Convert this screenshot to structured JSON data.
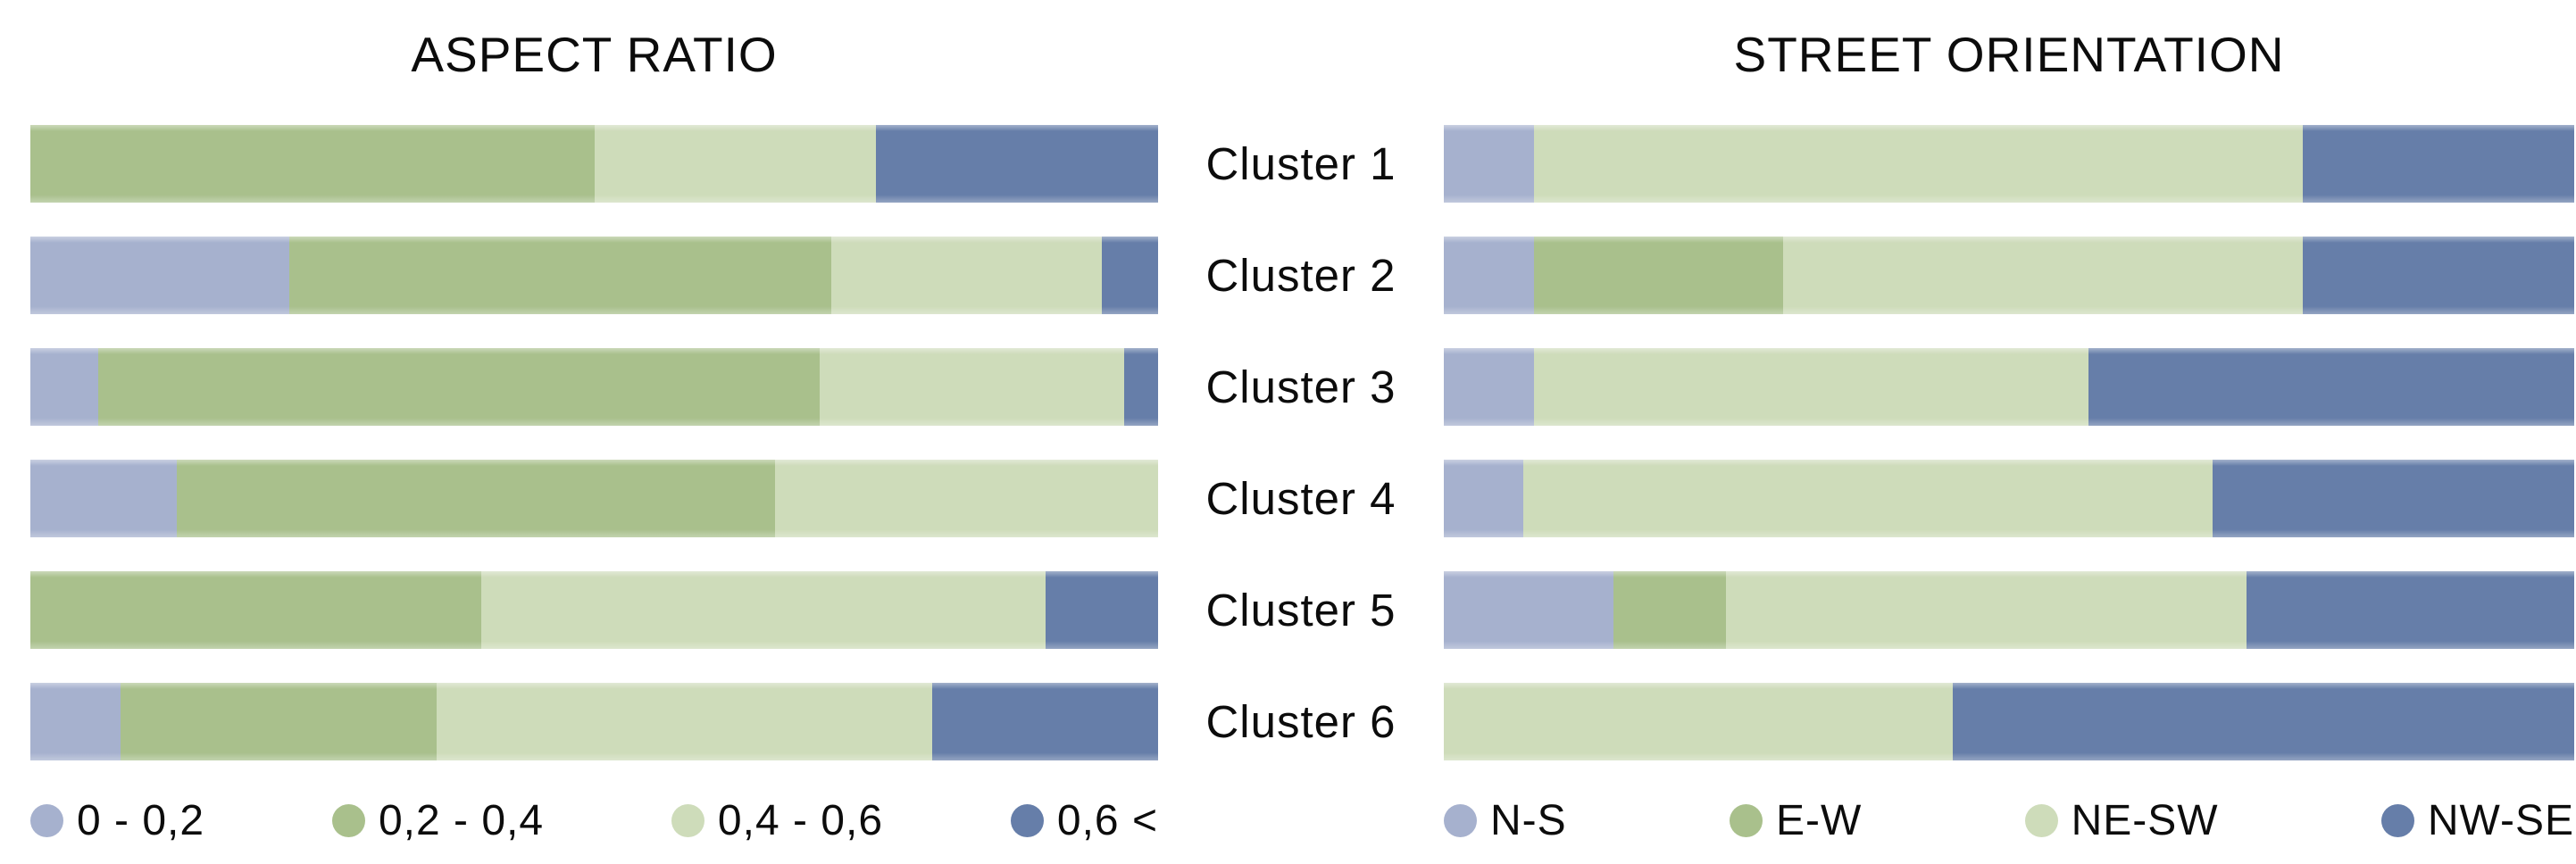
{
  "page": {
    "background": "#ffffff",
    "text_color": "#0c0c0c"
  },
  "palette": {
    "category1": "#a6b1ce",
    "category2": "#a9c08c",
    "category3": "#cedcba",
    "category4": "#667ea9"
  },
  "clusters": [
    "Cluster 1",
    "Cluster 2",
    "Cluster 3",
    "Cluster 4",
    "Cluster 5",
    "Cluster 6"
  ],
  "chart_data": [
    {
      "type": "bar",
      "variant": "horizontal-stacked",
      "title": "ASPECT RATIO",
      "categories": [
        "Cluster 1",
        "Cluster 2",
        "Cluster 3",
        "Cluster 4",
        "Cluster 5",
        "Cluster 6"
      ],
      "unit": "percent",
      "xlim": [
        0,
        100
      ],
      "grid": false,
      "legend_position": "bottom",
      "series": [
        {
          "name": "0 - 0,2",
          "color": "#a6b1ce",
          "values": [
            0,
            23,
            6,
            13,
            0,
            8
          ]
        },
        {
          "name": "0,2 - 0,4",
          "color": "#a9c08c",
          "values": [
            50,
            48,
            64,
            53,
            40,
            28
          ]
        },
        {
          "name": "0,4 - 0,6",
          "color": "#cedcba",
          "values": [
            25,
            24,
            27,
            34,
            50,
            44
          ]
        },
        {
          "name": "0,6 <",
          "color": "#667ea9",
          "values": [
            25,
            5,
            3,
            0,
            10,
            20
          ]
        }
      ]
    },
    {
      "type": "bar",
      "variant": "horizontal-stacked",
      "title": "STREET ORIENTATION",
      "categories": [
        "Cluster 1",
        "Cluster 2",
        "Cluster 3",
        "Cluster 4",
        "Cluster 5",
        "Cluster 6"
      ],
      "unit": "percent",
      "xlim": [
        0,
        100
      ],
      "grid": false,
      "legend_position": "bottom",
      "series": [
        {
          "name": "N-S",
          "color": "#a6b1ce",
          "values": [
            8,
            8,
            8,
            7,
            15,
            0
          ]
        },
        {
          "name": "E-W",
          "color": "#a9c08c",
          "values": [
            0,
            22,
            0,
            0,
            10,
            0
          ]
        },
        {
          "name": "NE-SW",
          "color": "#cedcba",
          "values": [
            68,
            46,
            49,
            61,
            46,
            45
          ]
        },
        {
          "name": "NW-SE",
          "color": "#667ea9",
          "values": [
            24,
            24,
            43,
            32,
            29,
            55
          ]
        }
      ]
    }
  ]
}
